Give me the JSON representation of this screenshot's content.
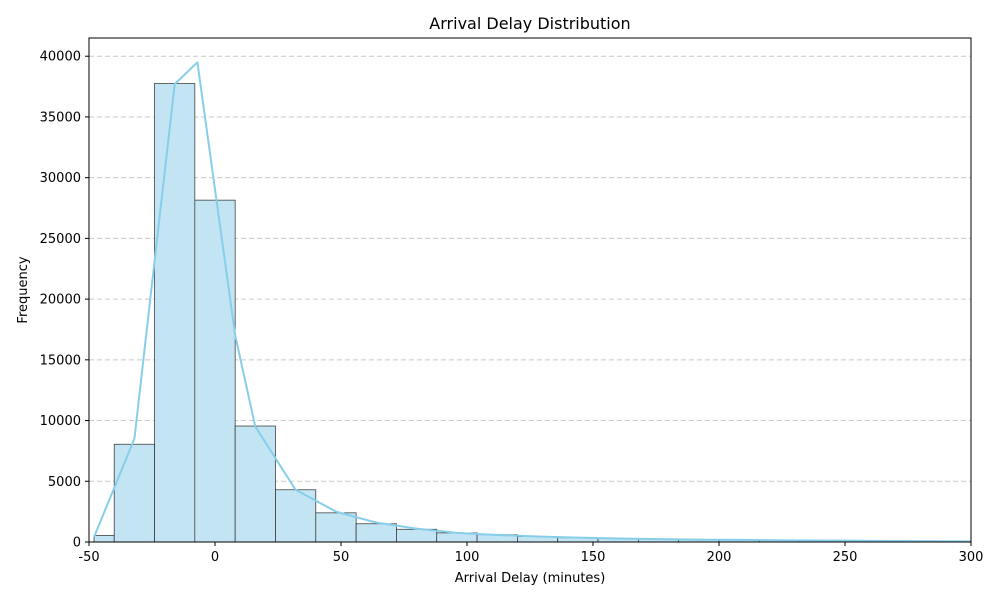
{
  "chart_data": {
    "type": "bar",
    "subtype": "histogram_with_kde",
    "title": "Arrival Delay Distribution",
    "xlabel": "Arrival Delay (minutes)",
    "ylabel": "Frequency",
    "xlim": [
      -50,
      300
    ],
    "ylim": [
      0,
      41500
    ],
    "x_ticks": [
      -50,
      0,
      50,
      100,
      150,
      200,
      250,
      300
    ],
    "y_ticks": [
      0,
      5000,
      10000,
      15000,
      20000,
      25000,
      30000,
      35000,
      40000
    ],
    "grid": "y-dashed",
    "bin_edges": [
      -48,
      -40,
      -24,
      -8,
      8,
      24,
      40,
      56,
      72,
      88,
      104,
      120,
      136,
      152,
      168,
      184,
      200,
      216,
      232,
      248,
      264,
      280,
      296,
      312
    ],
    "counts": [
      550,
      8050,
      37750,
      28150,
      9550,
      4300,
      2400,
      1500,
      1050,
      750,
      600,
      450,
      350,
      300,
      250,
      200,
      180,
      150,
      120,
      100,
      80,
      60,
      40
    ],
    "kde": {
      "x": [
        -48,
        -32,
        -16,
        -7,
        8,
        16,
        32,
        48,
        64,
        80,
        96,
        112,
        128,
        144,
        160,
        176,
        192,
        208,
        224,
        240,
        256,
        272,
        288,
        300
      ],
      "y": [
        400,
        8500,
        37700,
        39500,
        17000,
        9500,
        4300,
        2500,
        1600,
        1100,
        750,
        580,
        450,
        360,
        290,
        240,
        200,
        170,
        140,
        120,
        100,
        80,
        60,
        50
      ]
    },
    "colors": {
      "bar_fill": "#c3e5f3",
      "bar_edge": "#2b2b2b",
      "kde_line": "#87ceeb",
      "grid": "#c8c8c8"
    }
  }
}
